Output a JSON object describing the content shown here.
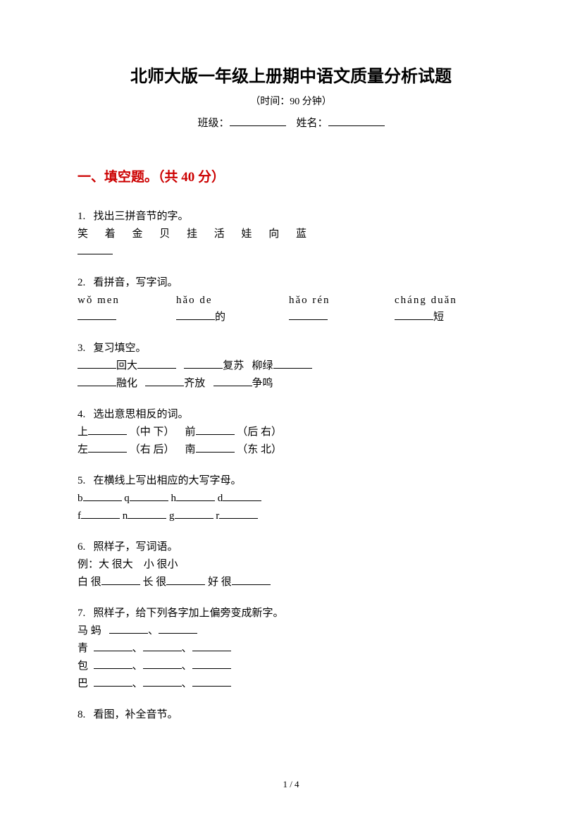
{
  "title": "北师大版一年级上册期中语文质量分析试题",
  "subtitle": "（时间：90 分钟）",
  "info": {
    "class_label": "班级：",
    "name_label": "姓名："
  },
  "section": {
    "heading": "一、填空题。（共 40 分）",
    "heading_color": "#cc0000"
  },
  "q1": {
    "num": "1.",
    "prompt": "找出三拼音节的字。",
    "chars": "笑 着 金 贝 挂 活 娃 向 蓝"
  },
  "q2": {
    "num": "2.",
    "prompt": "看拼音，写字词。",
    "pinyin": [
      "wǒ men",
      "hǎo de",
      "hǎo rén",
      "cháng duǎn"
    ],
    "suffix": [
      "",
      "的",
      "",
      "短"
    ]
  },
  "q3": {
    "num": "3.",
    "prompt": "复习填空。",
    "line1_part1": "回大",
    "line1_part2": "复苏",
    "line1_part3": "柳绿",
    "line2_part1": "融化",
    "line2_part2": "齐放",
    "line2_part3": "争鸣"
  },
  "q4": {
    "num": "4.",
    "prompt": "选出意思相反的词。",
    "pairs": [
      {
        "a": "上",
        "a_opt": "（中 下）",
        "b": "前",
        "b_opt": "（后 右）"
      },
      {
        "a": "左",
        "a_opt": "（右 后）",
        "b": "南",
        "b_opt": "（东 北）"
      }
    ]
  },
  "q5": {
    "num": "5.",
    "prompt": "在横线上写出相应的大写字母。",
    "row1": [
      "b",
      "q",
      "h",
      "d"
    ],
    "row2": [
      "f",
      "n",
      "g",
      "r"
    ]
  },
  "q6": {
    "num": "6.",
    "prompt": "照样子，写词语。",
    "example": "例：大 很大　小 很小",
    "items": [
      "白 很",
      "长 很",
      "好 很"
    ]
  },
  "q7": {
    "num": "7.",
    "prompt": "照样子，给下列各字加上偏旁变成新字。",
    "example_char": "马 蚂",
    "chars": [
      "青",
      "包",
      "巴"
    ]
  },
  "q8": {
    "num": "8.",
    "prompt": "看图，补全音节。"
  },
  "footer": "1 / 4"
}
